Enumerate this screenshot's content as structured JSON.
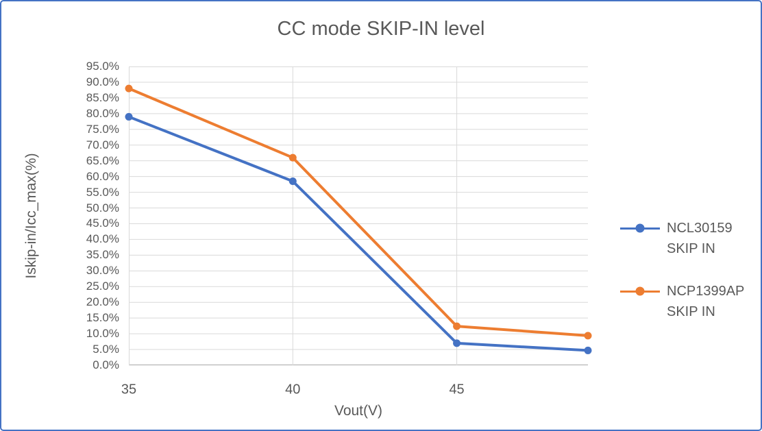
{
  "frame": {
    "border_color": "#4472C4",
    "background": "#FFFFFF"
  },
  "chart_data": {
    "type": "line",
    "title": "CC mode SKIP-IN level",
    "xlabel": "Vout(V)",
    "ylabel": "Iskip-in/Icc_max(%)",
    "x": [
      35,
      40,
      45,
      49
    ],
    "series": [
      {
        "name": "NCL30159 SKIP IN",
        "legend_lines": [
          "NCL30159",
          "SKIP IN"
        ],
        "color": "#4472C4",
        "values": [
          79.0,
          58.5,
          7.0,
          4.7
        ]
      },
      {
        "name": "NCP1399AP SKIP IN",
        "legend_lines": [
          "NCP1399AP",
          "SKIP IN"
        ],
        "color": "#ED7D31",
        "values": [
          88.0,
          66.0,
          12.4,
          9.4
        ]
      }
    ],
    "xlim": [
      35,
      49
    ],
    "ylim": [
      0,
      95
    ],
    "xticks": [
      35,
      40,
      45
    ],
    "xtick_labels": [
      "35",
      "40",
      "45"
    ],
    "ytick_step": 5,
    "ytick_labels": [
      "0.0%",
      "5.0%",
      "10.0%",
      "15.0%",
      "20.0%",
      "25.0%",
      "30.0%",
      "35.0%",
      "40.0%",
      "45.0%",
      "50.0%",
      "55.0%",
      "60.0%",
      "65.0%",
      "70.0%",
      "75.0%",
      "80.0%",
      "85.0%",
      "90.0%",
      "95.0%"
    ],
    "grid": true,
    "legend_position": "right",
    "marker": "circle",
    "colors": {
      "gridline": "#D9D9D9",
      "axis_line": "#BFBFBF",
      "text": "#595959"
    }
  }
}
